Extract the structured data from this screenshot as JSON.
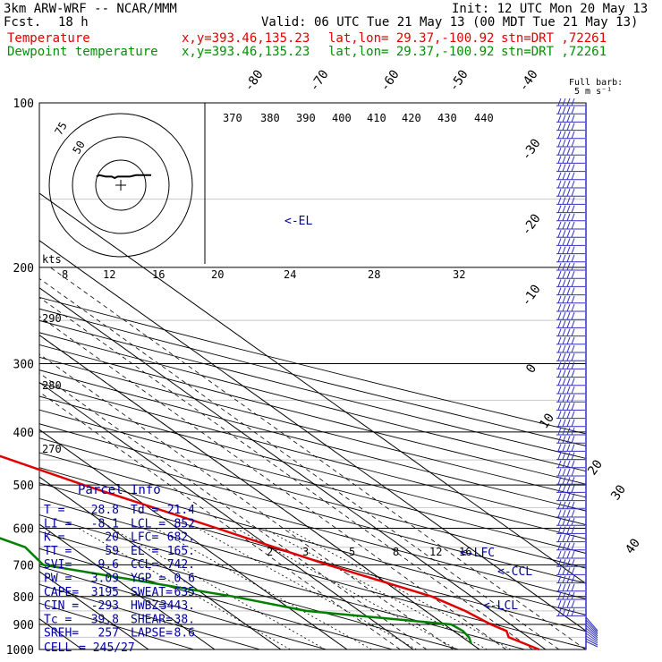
{
  "header": {
    "model": "3km ARW-WRF -- NCAR/MMM",
    "init": "Init: 12 UTC Mon 20 May 13",
    "fcst_label": "Fcst.",
    "fcst_value": "18 h",
    "valid": "Valid: 06 UTC Tue 21 May 13 (00 MDT Tue 21 May 13)",
    "temp_label": "Temperature",
    "dew_label": "Dewpoint temperature",
    "xy": "x,y=393.46,135.23",
    "latlon": "lat,lon= 29.37,-100.92",
    "stn": "stn=DRT ,72261"
  },
  "colors": {
    "temperature": "#e00000",
    "dewpoint": "#008000",
    "annot": "#0000a0",
    "wind": "#3030c0"
  },
  "chart_data": {
    "type": "skewt",
    "pressure_ticks": [
      "100",
      "200",
      "300",
      "400",
      "500",
      "600",
      "700",
      "800",
      "900",
      "1000"
    ],
    "isotherm_labels": [
      "-80",
      "-70",
      "-60",
      "-50",
      "-40",
      "-30",
      "-20",
      "-10",
      "0",
      "10",
      "20",
      "30",
      "40"
    ],
    "theta_labels": [
      "370",
      "380",
      "390",
      "400",
      "410",
      "420",
      "430",
      "440",
      "290",
      "280",
      "270"
    ],
    "hodo_ticks": [
      "8",
      "12",
      "16",
      "20",
      "24",
      "28",
      "32"
    ],
    "hodo_unit": "kts",
    "hodo_ring_labels": [
      "75",
      "50"
    ],
    "mixing_ratio_labels": [
      "2",
      "3",
      "5",
      "8",
      "12",
      "16"
    ],
    "barb_legend": [
      "Full barb:",
      "5 m s⁻¹"
    ],
    "levels": {
      "el": "<-EL",
      "lfc": "<-LFC",
      "ccl": "<-CCL",
      "lcl": "<-LCL"
    },
    "temperature": [
      [
        1000,
        29
      ],
      [
        950,
        27
      ],
      [
        925,
        28
      ],
      [
        900,
        27
      ],
      [
        850,
        26
      ],
      [
        800,
        24
      ],
      [
        700,
        15
      ],
      [
        600,
        6
      ],
      [
        500,
        -5
      ],
      [
        400,
        -17
      ],
      [
        300,
        -32
      ],
      [
        250,
        -41
      ],
      [
        200,
        -52
      ],
      [
        175,
        -57
      ],
      [
        150,
        -61
      ],
      [
        125,
        -64
      ],
      [
        110,
        -67
      ],
      [
        100,
        -70
      ]
    ],
    "dewpoint": [
      [
        975,
        20
      ],
      [
        950,
        21
      ],
      [
        925,
        21.4
      ],
      [
        900,
        21
      ],
      [
        850,
        2
      ],
      [
        800,
        -6
      ],
      [
        700,
        -28
      ],
      [
        650,
        -27
      ],
      [
        600,
        -31
      ],
      [
        500,
        -40
      ],
      [
        450,
        -45
      ],
      [
        400,
        -48
      ],
      [
        350,
        -53
      ],
      [
        300,
        -58
      ],
      [
        250,
        -65
      ],
      [
        200,
        -73
      ],
      [
        150,
        -83
      ],
      [
        110,
        -95
      ],
      [
        100,
        -98
      ]
    ],
    "hodograph": [
      [
        12,
        16
      ],
      [
        13,
        17
      ],
      [
        15,
        16
      ],
      [
        17,
        16
      ],
      [
        18,
        15
      ],
      [
        19,
        16
      ],
      [
        21,
        16
      ],
      [
        23,
        16
      ],
      [
        25,
        17
      ],
      [
        27,
        17
      ],
      [
        30,
        17
      ]
    ]
  },
  "parcel_info": {
    "title": "Parcel Info",
    "rows": [
      [
        "T  =",
        "28.8",
        "Td =",
        "21.4"
      ],
      [
        "LI =",
        "-8.1",
        "LCL =",
        "852"
      ],
      [
        "K  =",
        "20",
        "LFC=",
        "682."
      ],
      [
        "TT =",
        "59",
        "EL =",
        "165."
      ],
      [
        "SVI=",
        "-9.6",
        "CCL=",
        "742."
      ],
      [
        "PW =",
        "3.09",
        "YGP =",
        "0.6"
      ],
      [
        "CAPE=",
        "3195",
        "SWEAT=",
        "635"
      ],
      [
        "CIN =",
        "-293",
        "HWBZ=",
        "3443."
      ],
      [
        "Tc =",
        "39.8",
        "SHEAR=",
        "38."
      ],
      [
        "SREH=",
        "257",
        "LAPSE=",
        "8.6"
      ]
    ],
    "cell": "CELL = 245/27"
  }
}
